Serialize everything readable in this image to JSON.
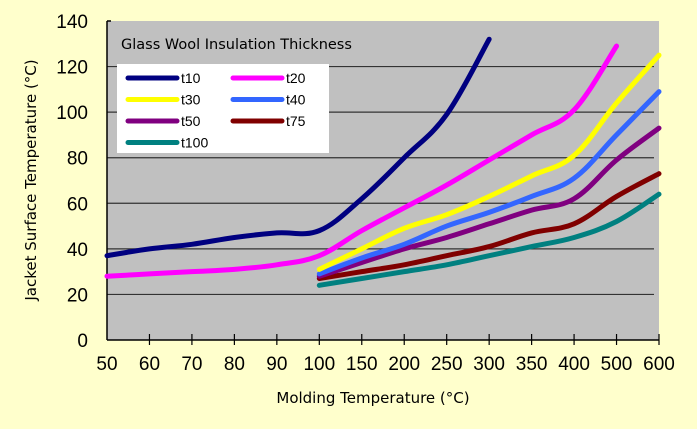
{
  "chart_data": {
    "type": "line",
    "title": "Glass Wool Insulation Thickness",
    "xlabel": "Molding Temperature (°C)",
    "ylabel": "Jacket Surface Temperature (°C)",
    "categories": [
      "50",
      "60",
      "70",
      "80",
      "90",
      "100",
      "150",
      "200",
      "250",
      "300",
      "350",
      "400",
      "500",
      "600"
    ],
    "yticks": [
      "0",
      "20",
      "40",
      "60",
      "80",
      "100",
      "120",
      "140"
    ],
    "ylim": [
      0,
      140
    ],
    "grid": true,
    "legend_position": "top-left",
    "series": [
      {
        "name": "t10",
        "color": "#000080",
        "values": [
          37,
          40,
          42,
          45,
          47,
          48,
          62,
          80,
          99,
          132,
          null,
          null,
          null,
          null
        ]
      },
      {
        "name": "t20",
        "color": "#ff00ff",
        "values": [
          28,
          29,
          30,
          31,
          33,
          37,
          48,
          58,
          68,
          79,
          90,
          101,
          129,
          null
        ]
      },
      {
        "name": "t30",
        "color": "#ffff00",
        "values": [
          null,
          null,
          null,
          null,
          null,
          31,
          40,
          49,
          55,
          63,
          72,
          81,
          104,
          125
        ]
      },
      {
        "name": "t40",
        "color": "#3366ff",
        "values": [
          null,
          null,
          null,
          null,
          null,
          29,
          36,
          42,
          50,
          56,
          63,
          71,
          90,
          109
        ]
      },
      {
        "name": "t50",
        "color": "#800080",
        "values": [
          null,
          null,
          null,
          null,
          null,
          28,
          34,
          40,
          45,
          51,
          57,
          62,
          79,
          93
        ]
      },
      {
        "name": "t75",
        "color": "#800000",
        "values": [
          null,
          null,
          null,
          null,
          null,
          27,
          30,
          33,
          37,
          41,
          47,
          51,
          63,
          73
        ]
      },
      {
        "name": "t100",
        "color": "#008080",
        "values": [
          null,
          null,
          null,
          null,
          null,
          24,
          27,
          30,
          33,
          37,
          41,
          45,
          52,
          64
        ]
      }
    ]
  }
}
